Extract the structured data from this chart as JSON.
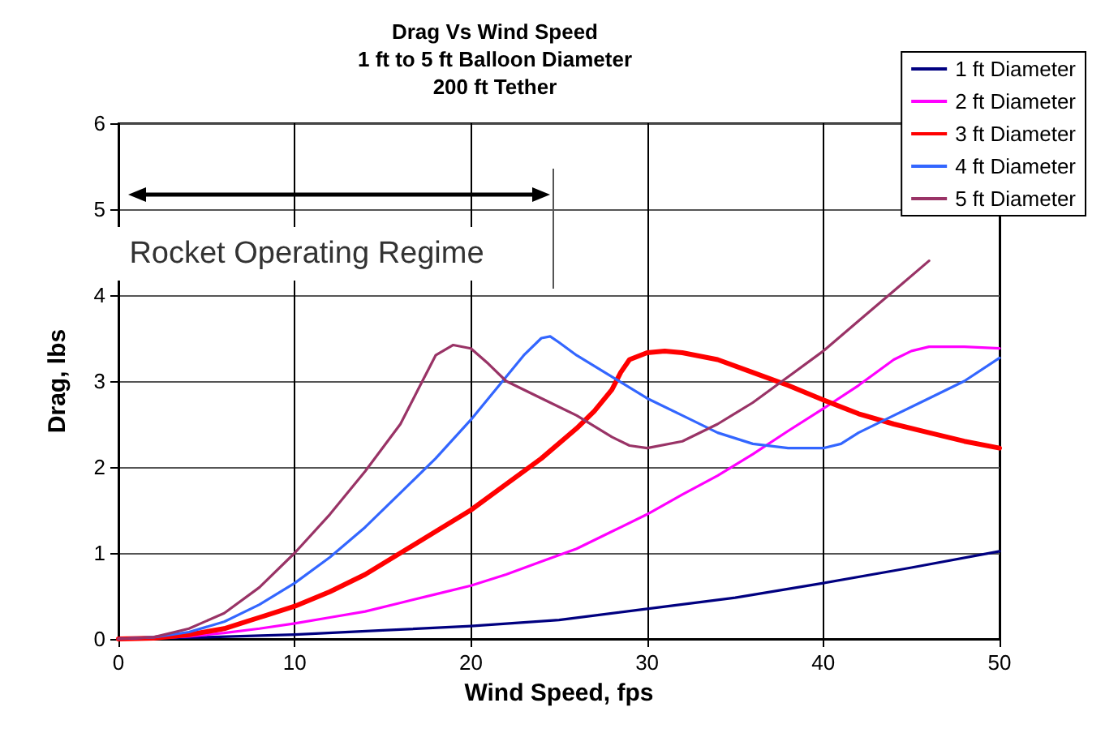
{
  "chart_data": {
    "type": "line",
    "title": "Drag Vs Wind Speed",
    "subtitle": "1 ft to 5 ft Balloon Diameter\n200 ft Tether",
    "xlabel": "Wind Speed, fps",
    "ylabel": "Drag, lbs",
    "xlim": [
      0,
      50
    ],
    "xticks": [
      0,
      10,
      20,
      30,
      40,
      50
    ],
    "ylim": [
      0,
      6
    ],
    "yticks": [
      0,
      1,
      2,
      3,
      4,
      5,
      6
    ],
    "grid": true,
    "legend": "top right",
    "marker": "none",
    "line_style": "solid",
    "annotations": [
      "Rocket Operating Regime"
    ],
    "series": [
      {
        "name": "1 ft Diameter",
        "color": "#000080",
        "x": [
          0,
          5,
          10,
          15,
          20,
          25,
          30,
          35,
          40,
          45,
          50
        ],
        "values": [
          0,
          0.02,
          0.05,
          0.1,
          0.15,
          0.22,
          0.35,
          0.48,
          0.65,
          0.83,
          1.02
        ]
      },
      {
        "name": "2 ft Diameter",
        "color": "#ff00ff",
        "x": [
          0,
          2,
          4,
          6,
          8,
          10,
          12,
          14,
          16,
          18,
          20,
          22,
          24,
          26,
          28,
          30,
          32,
          34,
          36,
          38,
          40,
          42,
          44,
          45,
          46,
          48,
          50
        ],
        "values": [
          0,
          0.01,
          0.03,
          0.07,
          0.12,
          0.18,
          0.25,
          0.32,
          0.42,
          0.52,
          0.62,
          0.75,
          0.9,
          1.05,
          1.25,
          1.45,
          1.68,
          1.9,
          2.15,
          2.42,
          2.68,
          2.95,
          3.25,
          3.35,
          3.4,
          3.4,
          3.38
        ]
      },
      {
        "name": "3 ft Diameter",
        "color": "#ff0000",
        "x": [
          0,
          2,
          4,
          6,
          8,
          10,
          12,
          14,
          16,
          18,
          20,
          22,
          24,
          26,
          27,
          28,
          28.5,
          29,
          30,
          31,
          32,
          34,
          36,
          38,
          40,
          42,
          44,
          46,
          48,
          50
        ],
        "values": [
          0,
          0.01,
          0.05,
          0.12,
          0.25,
          0.38,
          0.55,
          0.75,
          1.0,
          1.25,
          1.5,
          1.8,
          2.1,
          2.45,
          2.65,
          2.9,
          3.1,
          3.25,
          3.33,
          3.35,
          3.33,
          3.25,
          3.1,
          2.95,
          2.78,
          2.62,
          2.5,
          2.4,
          2.3,
          2.22
        ]
      },
      {
        "name": "4 ft Diameter",
        "color": "#3366ff",
        "x": [
          0,
          2,
          4,
          6,
          8,
          10,
          12,
          14,
          16,
          18,
          20,
          22,
          23,
          24,
          24.5,
          25,
          26,
          28,
          30,
          32,
          34,
          36,
          38,
          40,
          41,
          42,
          44,
          46,
          48,
          50
        ],
        "values": [
          0,
          0.02,
          0.08,
          0.2,
          0.4,
          0.65,
          0.95,
          1.3,
          1.7,
          2.1,
          2.55,
          3.05,
          3.3,
          3.5,
          3.52,
          3.45,
          3.3,
          3.05,
          2.8,
          2.6,
          2.4,
          2.27,
          2.22,
          2.22,
          2.27,
          2.4,
          2.6,
          2.8,
          3.0,
          3.27
        ]
      },
      {
        "name": "5 ft Diameter",
        "color": "#993366",
        "x": [
          0,
          2,
          4,
          6,
          8,
          10,
          12,
          14,
          16,
          17,
          18,
          19,
          20,
          21,
          22,
          24,
          26,
          28,
          29,
          30,
          32,
          34,
          36,
          38,
          40,
          42,
          44,
          46
        ],
        "values": [
          0,
          0.02,
          0.12,
          0.3,
          0.6,
          1.0,
          1.45,
          1.95,
          2.5,
          2.9,
          3.3,
          3.42,
          3.38,
          3.2,
          3.0,
          2.8,
          2.6,
          2.35,
          2.25,
          2.22,
          2.3,
          2.5,
          2.75,
          3.05,
          3.35,
          3.7,
          4.05,
          4.4
        ]
      }
    ]
  }
}
